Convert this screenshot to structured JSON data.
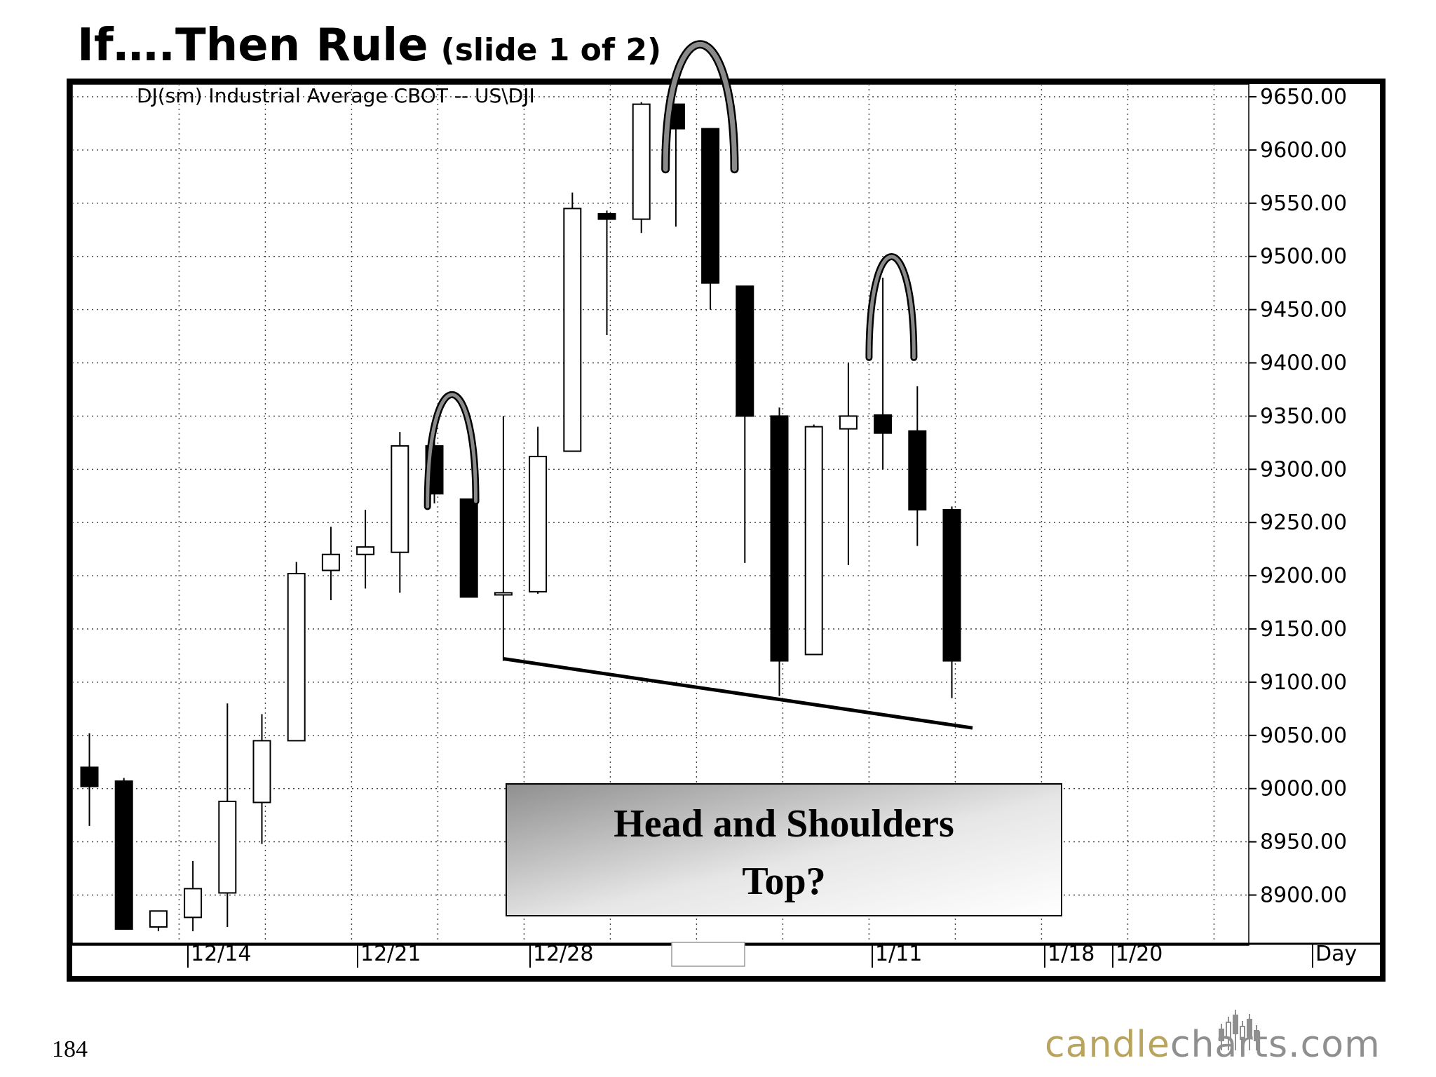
{
  "slide": {
    "title": "If….Then Rule",
    "subtitle": "(slide 1 of 2)",
    "page_number": "184",
    "logo_part1": "candle",
    "logo_part2": "charts.com"
  },
  "chart_data": {
    "type": "candlestick",
    "title": "DJ(sm) Industrial Average CBOT -- US\\DJI",
    "ylim": [
      8865,
      9670
    ],
    "y_ticks": [
      "9650.00",
      "9600.00",
      "9550.00",
      "9500.00",
      "9450.00",
      "9400.00",
      "9350.00",
      "9300.00",
      "9250.00",
      "9200.00",
      "9150.00",
      "9100.00",
      "9050.00",
      "9000.00",
      "8950.00",
      "8900.00"
    ],
    "x_tick_labels": [
      "12/14",
      "12/21",
      "12/28",
      "1/11",
      "1/18",
      "1/20",
      "Day"
    ],
    "grid": true,
    "candles": [
      {
        "o": 9020,
        "h": 9052,
        "l": 8965,
        "c": 9002
      },
      {
        "o": 9007,
        "h": 9010,
        "l": 8868,
        "c": 8868
      },
      {
        "o": 8870,
        "h": 8885,
        "l": 8866,
        "c": 8885
      },
      {
        "o": 8879,
        "h": 8932,
        "l": 8866,
        "c": 8906
      },
      {
        "o": 8902,
        "h": 9080,
        "l": 8870,
        "c": 8988
      },
      {
        "o": 8987,
        "h": 9070,
        "l": 8948,
        "c": 9045
      },
      {
        "o": 9045,
        "h": 9213,
        "l": 9045,
        "c": 9202
      },
      {
        "o": 9205,
        "h": 9246,
        "l": 9177,
        "c": 9220
      },
      {
        "o": 9220,
        "h": 9262,
        "l": 9188,
        "c": 9227
      },
      {
        "o": 9222,
        "h": 9335,
        "l": 9184,
        "c": 9322
      },
      {
        "o": 9322,
        "h": 9327,
        "l": 9268,
        "c": 9277
      },
      {
        "o": 9272,
        "h": 9272,
        "l": 9180,
        "c": 9180
      },
      {
        "o": 9182,
        "h": 9350,
        "l": 9120,
        "c": 9184
      },
      {
        "o": 9185,
        "h": 9340,
        "l": 9183,
        "c": 9312
      },
      {
        "o": 9317,
        "h": 9560,
        "l": 9317,
        "c": 9545
      },
      {
        "o": 9540,
        "h": 9543,
        "l": 9426,
        "c": 9535
      },
      {
        "o": 9535,
        "h": 9645,
        "l": 9522,
        "c": 9643
      },
      {
        "o": 9643,
        "h": 9640,
        "l": 9528,
        "c": 9620
      },
      {
        "o": 9620,
        "h": 9620,
        "l": 9450,
        "c": 9475
      },
      {
        "o": 9472,
        "h": 9472,
        "l": 9212,
        "c": 9350
      },
      {
        "o": 9350,
        "h": 9358,
        "l": 9087,
        "c": 9120
      },
      {
        "o": 9126,
        "h": 9342,
        "l": 9126,
        "c": 9340
      },
      {
        "o": 9338,
        "h": 9400,
        "l": 9210,
        "c": 9350
      },
      {
        "o": 9351,
        "h": 9480,
        "l": 9300,
        "c": 9334
      },
      {
        "o": 9336,
        "h": 9378,
        "l": 9228,
        "c": 9262
      },
      {
        "o": 9262,
        "h": 9265,
        "l": 9085,
        "c": 9120
      }
    ],
    "trendline": {
      "from": [
        12,
        9122
      ],
      "to": [
        25.6,
        9057
      ]
    },
    "annotation": "Head and Shoulders Top?",
    "left_shoulder": {
      "start": [
        9.8,
        9265
      ],
      "peak": [
        10.4,
        9378
      ],
      "end": [
        11.2,
        9270
      ]
    },
    "head": {
      "start": [
        16.7,
        9582
      ],
      "peak": [
        17.7,
        9712
      ],
      "end": [
        18.7,
        9582
      ]
    },
    "right_shoulder": {
      "start": [
        22.6,
        9405
      ],
      "peak": [
        23.2,
        9505
      ],
      "end": [
        23.9,
        9405
      ]
    }
  }
}
